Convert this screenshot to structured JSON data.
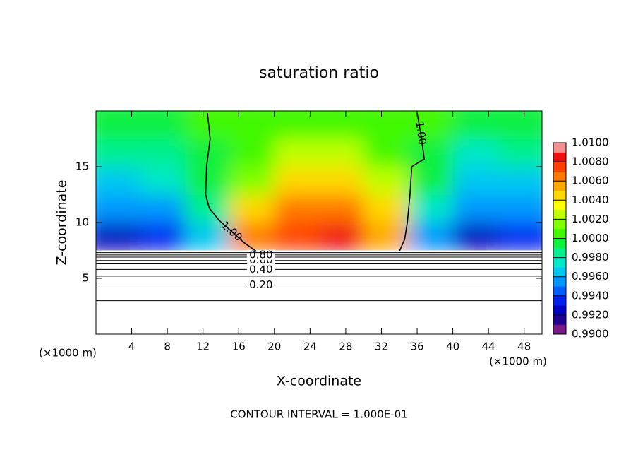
{
  "chart_data": {
    "type": "heatmap",
    "title": "saturation ratio",
    "xlabel": "X-coordinate",
    "ylabel": "Z-coordinate",
    "x_unit": "(×1000 m)",
    "y_unit": "(×1000 m)",
    "footer": "CONTOUR INTERVAL = 1.000E-01",
    "xlim": [
      0,
      50
    ],
    "ylim": [
      0,
      20
    ],
    "xticks": [
      4,
      8,
      12,
      16,
      20,
      24,
      28,
      32,
      36,
      40,
      44,
      48
    ],
    "yticks": [
      5,
      10,
      15
    ],
    "x_edges": [
      0,
      5,
      10,
      15,
      20,
      25,
      30,
      35,
      40,
      45,
      50
    ],
    "z_edges": [
      7.5,
      10,
      12.5,
      15,
      17.5,
      20
    ],
    "z": [
      [
        0.9925,
        0.9935,
        0.996,
        1.0065,
        1.0075,
        1.0085,
        1.0055,
        0.9955,
        0.9925,
        0.9935
      ],
      [
        0.995,
        0.9955,
        0.9985,
        1.004,
        1.006,
        1.007,
        1.004,
        0.9975,
        0.995,
        0.9955
      ],
      [
        0.9965,
        0.997,
        0.999,
        1.0015,
        1.0045,
        1.005,
        1.002,
        0.999,
        0.9965,
        0.996
      ],
      [
        0.998,
        0.998,
        0.9995,
        1.0005,
        1.0025,
        1.002,
        1.0005,
        0.9995,
        0.9975,
        0.998
      ],
      [
        0.999,
        0.9995,
        1.0,
        1.0,
        1.0005,
        1.0005,
        1.0,
        1.0,
        0.999,
        0.9995
      ]
    ],
    "colorbar": {
      "lim": [
        0.99,
        1.01
      ],
      "ticks": [
        {
          "value": 0.99,
          "label": "0.9900"
        },
        {
          "value": 0.992,
          "label": "0.9920"
        },
        {
          "value": 0.994,
          "label": "0.9940"
        },
        {
          "value": 0.996,
          "label": "0.9960"
        },
        {
          "value": 0.998,
          "label": "0.9980"
        },
        {
          "value": 1.0,
          "label": "1.0000"
        },
        {
          "value": 1.002,
          "label": "1.0020"
        },
        {
          "value": 1.004,
          "label": "1.0040"
        },
        {
          "value": 1.006,
          "label": "1.0060"
        },
        {
          "value": 1.008,
          "label": "1.0080"
        },
        {
          "value": 1.01,
          "label": "1.0100"
        }
      ],
      "colors": [
        "#7a1a8a",
        "#200090",
        "#0000c0",
        "#0020f0",
        "#0060ff",
        "#0098ff",
        "#00c8f0",
        "#00e8c8",
        "#00f090",
        "#10f040",
        "#40f800",
        "#80ff00",
        "#c0ff00",
        "#ffff00",
        "#ffd800",
        "#ffa800",
        "#ff7800",
        "#ff4000",
        "#f01010",
        "#f09090"
      ]
    },
    "flat_contours": [
      {
        "level": 0.1,
        "z": 3.0
      },
      {
        "level": 0.2,
        "z": 4.4,
        "label": "0.20"
      },
      {
        "level": 0.3,
        "z": 5.2
      },
      {
        "level": 0.4,
        "z": 5.8,
        "label": "0.40"
      },
      {
        "level": 0.5,
        "z": 6.3
      },
      {
        "level": 0.6,
        "z": 6.6,
        "label": "0.60"
      },
      {
        "level": 0.7,
        "z": 6.9
      },
      {
        "level": 0.8,
        "z": 7.1,
        "label": "0.80"
      },
      {
        "level": 0.9,
        "z": 7.3
      }
    ],
    "curved_contours": [
      {
        "level": 1.0,
        "label": "1.00",
        "x": [
          12.5,
          12.8,
          12.4,
          12.3,
          12.7,
          13.8,
          15.2,
          16.6,
          18
        ],
        "z": [
          19.8,
          17.5,
          15,
          12.5,
          11.3,
          10.2,
          9.2,
          8.2,
          7.4
        ]
      },
      {
        "level": 1.0,
        "label": "1.00",
        "x": [
          36,
          36.4,
          36.8,
          35.4,
          35.2,
          34.9,
          34.6,
          34
        ],
        "z": [
          19.8,
          18,
          15.7,
          15,
          12.5,
          10,
          8.5,
          7.4
        ]
      }
    ]
  }
}
